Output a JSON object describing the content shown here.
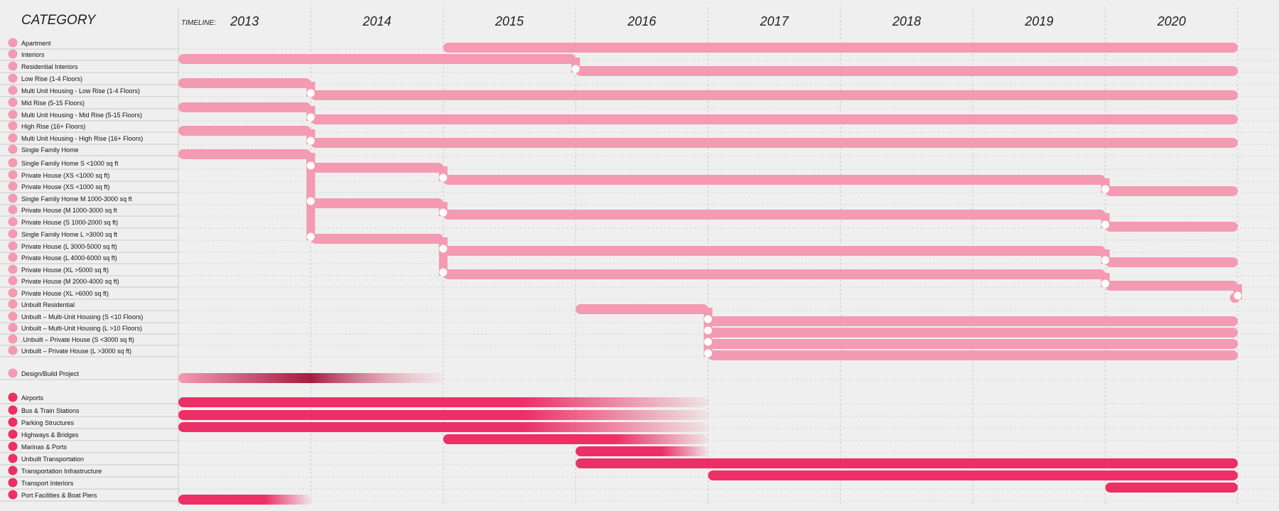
{
  "header": {
    "category_label": "CATEGORY",
    "timeline_label": "TIMELINE:"
  },
  "colors": {
    "light": "#f49ab3",
    "dark": "#ec2f64",
    "gradient_dark": "#a81a3f",
    "node": "#ffffff",
    "background": "#efefef",
    "grid": "#c9c9c9"
  },
  "chart_data": {
    "type": "timeline",
    "title": "",
    "years": [
      "2013",
      "2014",
      "2015",
      "2016",
      "2017",
      "2018",
      "2019",
      "2020"
    ],
    "x_range": [
      2013.0,
      2021.0
    ],
    "categories": [
      {
        "label": "Apartment",
        "group": "residential",
        "segments": [
          [
            2015.0,
            2021.0
          ]
        ]
      },
      {
        "label": "Interiors",
        "group": "residential",
        "segments": [
          [
            2013.0,
            2016.0
          ]
        ]
      },
      {
        "label": "Residential Interiors",
        "group": "residential",
        "segments": [
          [
            2016.0,
            2021.0
          ]
        ],
        "connect_from": 2
      },
      {
        "label": "Low Rise (1-4 Floors)",
        "group": "residential",
        "segments": [
          [
            2013.0,
            2014.0
          ]
        ]
      },
      {
        "label": "Multi Unit Housing - Low Rise (1-4 Floors)",
        "group": "residential",
        "segments": [
          [
            2014.0,
            2021.0
          ]
        ],
        "connect_from": 4
      },
      {
        "label": "Mid Rise (5-15 Floors)",
        "group": "residential",
        "segments": [
          [
            2013.0,
            2014.0
          ]
        ]
      },
      {
        "label": "Multi Unit Housing - Mid Rise (5-15 Floors)",
        "group": "residential",
        "segments": [
          [
            2014.0,
            2021.0
          ]
        ],
        "connect_from": 6
      },
      {
        "label": "High Rise (16+ Floors)",
        "group": "residential",
        "segments": [
          [
            2013.0,
            2014.0
          ]
        ]
      },
      {
        "label": "Multi Unit Housing - High Rise (16+ Floors)",
        "group": "residential",
        "segments": [
          [
            2014.0,
            2021.0
          ]
        ],
        "connect_from": 8
      },
      {
        "label": "Single Family Home",
        "group": "residential",
        "segments": [
          [
            2013.0,
            2014.0
          ]
        ]
      },
      {
        "label": "Single Family Home S <1000 sq ft",
        "group": "residential",
        "segments": [
          [
            2014.0,
            2015.0
          ]
        ],
        "connect_from": 10
      },
      {
        "label": "Private House (XS <1000 sq ft)",
        "group": "residential",
        "segments": [
          [
            2015.0,
            2020.0
          ]
        ],
        "connect_from": 11
      },
      {
        "label": " Private House (XS <1000 sq ft)",
        "group": "residential",
        "segments": [
          [
            2020.0,
            2021.0
          ]
        ],
        "connect_from": 12
      },
      {
        "label": "Single Family Home M 1000-3000 sq ft",
        "group": "residential",
        "segments": [
          [
            2014.0,
            2015.0
          ]
        ],
        "connect_from": 10
      },
      {
        "label": "Private House (M 1000-3000 sq ft",
        "group": "residential",
        "segments": [
          [
            2015.0,
            2020.0
          ]
        ],
        "connect_from": 14
      },
      {
        "label": "Private House (S 1000-2000 sq ft)",
        "group": "residential",
        "segments": [
          [
            2020.0,
            2021.0
          ]
        ],
        "connect_from": 15
      },
      {
        "label": "Single Family Home L >3000 sq ft",
        "group": "residential",
        "segments": [
          [
            2014.0,
            2015.0
          ]
        ],
        "connect_from": 10
      },
      {
        "label": "Private House (L 3000-5000 sq ft)",
        "group": "residential",
        "segments": [
          [
            2015.0,
            2020.0
          ]
        ],
        "connect_from": 17
      },
      {
        "label": "Private House (L 4000-6000 sq ft)",
        "group": "residential",
        "segments": [
          [
            2020.0,
            2021.0
          ]
        ],
        "connect_from": 18
      },
      {
        "label": "Private House (XL >5000 sq ft)",
        "group": "residential",
        "segments": [
          [
            2015.0,
            2020.0
          ]
        ],
        "connect_from": 17
      },
      {
        "label": "Private House (M 2000-4000 sq ft)",
        "group": "residential",
        "segments": [
          [
            2020.0,
            2021.0
          ]
        ],
        "connect_from": 20
      },
      {
        "label": "Private House (XL >6000 sq ft)",
        "group": "residential",
        "segments": [
          [
            2021.0,
            2021.0
          ]
        ],
        "connect_from": 21
      },
      {
        "label": "Unbuilt Residential",
        "group": "residential",
        "segments": [
          [
            2016.0,
            2017.0
          ]
        ]
      },
      {
        "label": "Unbuilt – Multi-Unit Housing (S <10 Floors)",
        "group": "residential",
        "segments": [
          [
            2017.0,
            2021.0
          ]
        ],
        "connect_from": 23
      },
      {
        "label": "Unbuilt – Multi-Unit Housing (L >10 Floors)",
        "group": "residential",
        "segments": [
          [
            2017.0,
            2021.0
          ]
        ],
        "connect_from": 23
      },
      {
        "label": ".Unbuilt – Private House (S <3000 sq ft)",
        "group": "residential",
        "segments": [
          [
            2017.0,
            2021.0
          ]
        ],
        "connect_from": 23
      },
      {
        "label": "Unbuilt – Private House (L >3000 sq ft)",
        "group": "residential",
        "segments": [
          [
            2017.0,
            2021.0
          ]
        ],
        "connect_from": 23
      },
      {
        "label": "Design/Build Project",
        "group": "design_build",
        "segments": [
          [
            2013.0,
            2015.0
          ]
        ],
        "fade": "gradient"
      },
      {
        "label": "Airports",
        "group": "transportation",
        "segments": [
          [
            2013.0,
            2017.0
          ]
        ],
        "fade": "end"
      },
      {
        "label": "Bus & Train Stations",
        "group": "transportation",
        "segments": [
          [
            2013.0,
            2017.0
          ]
        ],
        "fade": "end"
      },
      {
        "label": "Parking Structures",
        "group": "transportation",
        "segments": [
          [
            2013.0,
            2017.0
          ]
        ],
        "fade": "end"
      },
      {
        "label": "Highways & Bridges",
        "group": "transportation",
        "segments": [
          [
            2015.0,
            2017.0
          ]
        ],
        "fade": "end"
      },
      {
        "label": "Marinas & Ports",
        "group": "transportation",
        "segments": [
          [
            2016.0,
            2017.0
          ]
        ],
        "fade": "end"
      },
      {
        "label": "Unbuilt Transportation",
        "group": "transportation",
        "segments": [
          [
            2016.0,
            2021.0
          ]
        ]
      },
      {
        "label": "Transportation Infrastructure",
        "group": "transportation",
        "segments": [
          [
            2017.0,
            2021.0
          ]
        ]
      },
      {
        "label": "Transport Interiors",
        "group": "transportation",
        "segments": [
          [
            2020.0,
            2021.0
          ]
        ]
      },
      {
        "label": "Port Facilities & Boat Piers",
        "group": "transportation",
        "segments": [
          [
            2013.0,
            2014.0
          ]
        ],
        "fade": "end"
      }
    ]
  }
}
